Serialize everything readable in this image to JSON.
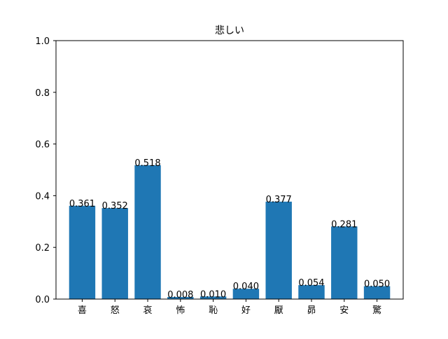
{
  "chart_data": {
    "type": "bar",
    "title": "悲しい",
    "xlabel": "",
    "ylabel": "",
    "categories": [
      "喜",
      "怒",
      "哀",
      "怖",
      "恥",
      "好",
      "厭",
      "昴",
      "安",
      "驚"
    ],
    "values": [
      0.361,
      0.352,
      0.518,
      0.008,
      0.01,
      0.04,
      0.377,
      0.054,
      0.281,
      0.05
    ],
    "data_labels": [
      "0.361",
      "0.352",
      "0.518",
      "0.008",
      "0.010",
      "0.040",
      "0.377",
      "0.054",
      "0.281",
      "0.050"
    ],
    "ylim": [
      0,
      1.0
    ],
    "yticks": [
      0.0,
      0.2,
      0.4,
      0.6,
      0.8,
      1.0
    ],
    "ytick_labels": [
      "0.0",
      "0.2",
      "0.4",
      "0.6",
      "0.8",
      "1.0"
    ],
    "grid": false,
    "legend": "none",
    "bar_color": "#1f77b4"
  }
}
